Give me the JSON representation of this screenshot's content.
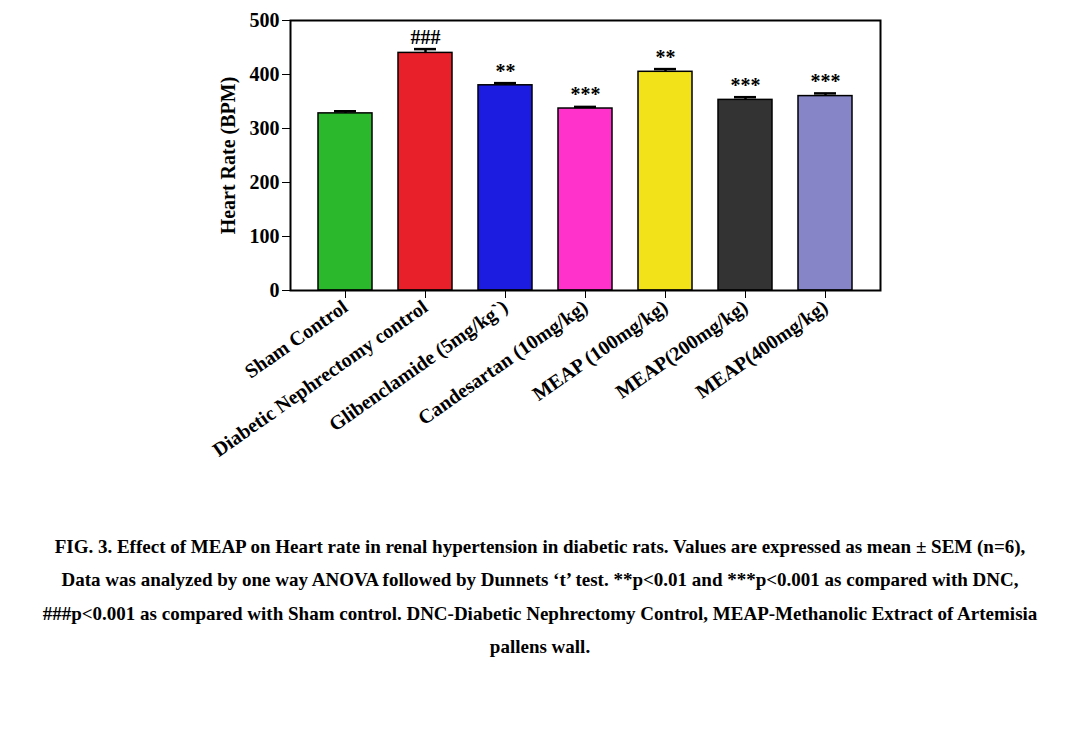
{
  "chart_data": {
    "type": "bar",
    "y_label": "Heart Rate (BPM)",
    "categories": [
      "Sham Control",
      "Diabetic Nephrectomy control",
      "Glibenclamide (5mg/kg`)",
      "Candesartan (10mg/kg)",
      "MEAP (100mg/kg)",
      "MEAP(200mg/kg)",
      "MEAP(400mg/kg)"
    ],
    "values": [
      328,
      440,
      380,
      337,
      405,
      353,
      360
    ],
    "errors": [
      4,
      7,
      4,
      3,
      5,
      5,
      5
    ],
    "annotations": [
      null,
      "###",
      "**",
      "***",
      "**",
      "***",
      "***"
    ],
    "colors": [
      "#2cb82c",
      "#e8202a",
      "#1c1ce0",
      "#ff33cc",
      "#f2e21a",
      "#333333",
      "#8585c8"
    ],
    "ylim": [
      0,
      500
    ],
    "yticks": [
      0,
      100,
      200,
      300,
      400,
      500
    ],
    "grid": false,
    "caption": "FIG. 3. Effect of MEAP on Heart rate in renal hypertension in diabetic rats. Values are expressed as mean ± SEM (n=6), Data was analyzed by one way ANOVA followed by Dunnets ‘t’ test. **p<0.01 and ***p<0.001 as compared with DNC, ###p<0.001 as compared with Sham control. DNC-Diabetic Nephrectomy Control, MEAP-Methanolic Extract of Artemisia pallens wall."
  }
}
